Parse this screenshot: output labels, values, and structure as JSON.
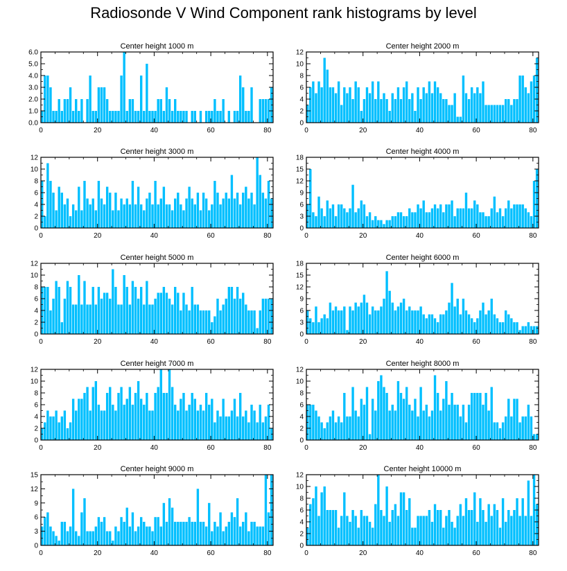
{
  "title": "Radiosonde V Wind Component rank histograms by level",
  "colors": {
    "bar": "#00bfff",
    "axis": "#000000"
  },
  "chart_data": [
    {
      "type": "bar",
      "title": "Center height 1000 m",
      "xlim": [
        0,
        82
      ],
      "ylim": [
        0,
        6
      ],
      "xticks": [
        0,
        20,
        40,
        60,
        80
      ],
      "yticks": [
        0,
        1,
        2,
        3,
        4,
        5,
        6
      ],
      "yticklabels": [
        "0.0",
        "1.0",
        "2.0",
        "3.0",
        "4.0",
        "5.0",
        "6.0"
      ],
      "values": [
        1,
        4,
        4,
        3,
        1,
        1,
        2,
        1,
        2,
        2,
        3,
        1,
        2,
        1,
        2,
        0,
        2,
        4,
        1,
        1,
        3,
        3,
        3,
        2,
        1,
        1,
        1,
        1,
        4,
        6,
        1,
        2,
        2,
        1,
        1,
        4,
        1,
        5,
        1,
        1,
        1,
        2,
        2,
        1,
        3,
        2,
        1,
        2,
        1,
        1,
        1,
        1,
        0,
        1,
        1,
        0,
        1,
        0,
        1,
        1,
        1,
        2,
        1,
        1,
        2,
        0,
        1,
        0,
        1,
        1,
        4,
        3,
        1,
        1,
        3,
        0,
        0,
        2,
        2,
        2,
        2,
        3
      ]
    },
    {
      "type": "bar",
      "title": "Center height 2000 m",
      "xlim": [
        0,
        82
      ],
      "ylim": [
        0,
        12
      ],
      "xticks": [
        0,
        20,
        40,
        60,
        80
      ],
      "yticks": [
        0,
        2,
        4,
        6,
        8,
        10,
        12
      ],
      "yticklabels": [
        "0",
        "2",
        "4",
        "6",
        "8",
        "10",
        "12"
      ],
      "values": [
        3,
        6,
        7,
        5,
        7,
        6,
        11,
        9,
        6,
        6,
        5,
        7,
        3,
        6,
        5,
        6,
        4,
        7,
        6,
        2,
        4,
        6,
        5,
        7,
        4,
        7,
        4,
        5,
        4,
        2,
        5,
        4,
        6,
        4,
        6,
        7,
        4,
        5,
        2,
        6,
        4,
        6,
        5,
        7,
        5,
        7,
        6,
        5,
        4,
        4,
        3,
        3,
        5,
        1,
        1,
        8,
        5,
        4,
        6,
        5,
        6,
        5,
        7,
        3,
        3,
        3,
        3,
        3,
        3,
        3,
        4,
        4,
        3,
        4,
        4,
        8,
        8,
        6,
        5,
        7,
        8,
        11
      ]
    },
    {
      "type": "bar",
      "title": "Center height 3000 m",
      "xlim": [
        0,
        82
      ],
      "ylim": [
        0,
        12
      ],
      "xticks": [
        0,
        20,
        40,
        60,
        80
      ],
      "yticks": [
        0,
        2,
        4,
        6,
        8,
        10,
        12
      ],
      "yticklabels": [
        "0",
        "2",
        "4",
        "6",
        "8",
        "10",
        "12"
      ],
      "values": [
        8,
        2,
        11,
        8,
        6,
        3,
        7,
        6,
        4,
        5,
        2,
        4,
        3,
        7,
        3,
        8,
        5,
        4,
        5,
        3,
        8,
        5,
        4,
        7,
        6,
        3,
        6,
        3,
        5,
        4,
        5,
        4,
        8,
        4,
        7,
        4,
        3,
        5,
        6,
        4,
        8,
        4,
        5,
        7,
        4,
        4,
        3,
        5,
        6,
        4,
        3,
        5,
        7,
        5,
        4,
        6,
        3,
        6,
        5,
        3,
        4,
        8,
        6,
        4,
        5,
        6,
        5,
        9,
        5,
        6,
        4,
        6,
        7,
        5,
        6,
        4,
        12,
        9,
        6,
        5,
        8,
        5
      ]
    },
    {
      "type": "bar",
      "title": "Center height 4000 m",
      "xlim": [
        0,
        82
      ],
      "ylim": [
        0,
        18
      ],
      "xticks": [
        0,
        20,
        40,
        60,
        80
      ],
      "yticks": [
        0,
        3,
        6,
        9,
        12,
        15,
        18
      ],
      "yticklabels": [
        "0",
        "3",
        "6",
        "9",
        "12",
        "15",
        "18"
      ],
      "values": [
        6,
        15,
        4,
        3,
        8,
        5,
        3,
        7,
        5,
        6,
        3,
        6,
        6,
        5,
        4,
        5,
        11,
        4,
        5,
        7,
        6,
        3,
        4,
        2,
        3,
        2,
        2,
        1,
        2,
        2,
        3,
        3,
        4,
        4,
        3,
        3,
        5,
        4,
        4,
        6,
        5,
        7,
        4,
        4,
        5,
        6,
        5,
        6,
        4,
        6,
        6,
        7,
        3,
        5,
        5,
        5,
        9,
        5,
        5,
        7,
        6,
        4,
        4,
        3,
        3,
        5,
        8,
        4,
        5,
        3,
        5,
        7,
        5,
        6,
        6,
        6,
        6,
        5,
        4,
        3,
        12,
        15
      ]
    },
    {
      "type": "bar",
      "title": "Center height 5000 m",
      "xlim": [
        0,
        82
      ],
      "ylim": [
        0,
        12
      ],
      "xticks": [
        0,
        20,
        40,
        60,
        80
      ],
      "yticks": [
        0,
        2,
        4,
        6,
        8,
        10,
        12
      ],
      "yticklabels": [
        "0",
        "2",
        "4",
        "6",
        "8",
        "10",
        "12"
      ],
      "values": [
        8,
        8,
        8,
        4,
        6,
        9,
        8,
        2,
        6,
        9,
        8,
        5,
        5,
        10,
        5,
        9,
        5,
        5,
        8,
        5,
        8,
        6,
        7,
        7,
        6,
        11,
        8,
        5,
        5,
        10,
        8,
        5,
        9,
        8,
        6,
        8,
        5,
        9,
        5,
        5,
        6,
        7,
        7,
        8,
        7,
        6,
        5,
        8,
        7,
        4,
        7,
        5,
        4,
        8,
        5,
        5,
        4,
        4,
        4,
        4,
        2,
        3,
        6,
        4,
        5,
        6,
        8,
        8,
        6,
        8,
        6,
        7,
        5,
        4,
        4,
        4,
        1,
        4,
        6,
        6,
        6,
        6
      ]
    },
    {
      "type": "bar",
      "title": "Center height 6000 m",
      "xlim": [
        0,
        82
      ],
      "ylim": [
        0,
        18
      ],
      "xticks": [
        0,
        20,
        40,
        60,
        80
      ],
      "yticks": [
        0,
        3,
        6,
        9,
        12,
        15,
        18
      ],
      "yticklabels": [
        "0",
        "3",
        "6",
        "9",
        "12",
        "15",
        "18"
      ],
      "values": [
        6,
        4,
        3,
        7,
        3,
        4,
        5,
        4,
        8,
        6,
        7,
        6,
        6,
        7,
        1,
        7,
        6,
        8,
        7,
        8,
        10,
        8,
        5,
        7,
        6,
        6,
        7,
        9,
        16,
        11,
        8,
        6,
        7,
        8,
        9,
        6,
        7,
        6,
        6,
        6,
        7,
        5,
        4,
        5,
        5,
        4,
        3,
        5,
        5,
        6,
        8,
        13,
        7,
        9,
        5,
        9,
        6,
        5,
        4,
        3,
        4,
        6,
        8,
        5,
        6,
        9,
        5,
        4,
        3,
        3,
        6,
        5,
        4,
        3,
        3,
        1,
        2,
        2,
        3,
        2,
        2,
        2
      ]
    },
    {
      "type": "bar",
      "title": "Center height 7000 m",
      "xlim": [
        0,
        82
      ],
      "ylim": [
        0,
        12
      ],
      "xticks": [
        0,
        20,
        40,
        60,
        80
      ],
      "yticks": [
        0,
        2,
        4,
        6,
        8,
        10,
        12
      ],
      "yticklabels": [
        "0",
        "2",
        "4",
        "6",
        "8",
        "10",
        "12"
      ],
      "values": [
        2,
        3,
        5,
        4,
        4,
        5,
        3,
        4,
        5,
        2,
        3,
        7,
        5,
        7,
        7,
        8,
        9,
        5,
        9,
        10,
        6,
        5,
        5,
        8,
        9,
        6,
        5,
        8,
        9,
        6,
        7,
        9,
        6,
        8,
        10,
        7,
        6,
        8,
        5,
        5,
        8,
        9,
        12,
        8,
        8,
        12,
        9,
        6,
        5,
        7,
        8,
        5,
        6,
        8,
        7,
        5,
        6,
        5,
        8,
        6,
        7,
        3,
        5,
        4,
        7,
        4,
        4,
        5,
        7,
        4,
        8,
        4,
        5,
        3,
        6,
        5,
        3,
        6,
        3,
        4,
        6,
        2
      ]
    },
    {
      "type": "bar",
      "title": "Center height 8000 m",
      "xlim": [
        0,
        82
      ],
      "ylim": [
        0,
        12
      ],
      "xticks": [
        0,
        20,
        40,
        60,
        80
      ],
      "yticks": [
        0,
        2,
        4,
        6,
        8,
        10,
        12
      ],
      "yticklabels": [
        "0",
        "2",
        "4",
        "6",
        "8",
        "10",
        "12"
      ],
      "values": [
        6,
        6,
        6,
        5,
        4,
        3,
        2,
        3,
        4,
        5,
        3,
        4,
        3,
        8,
        4,
        4,
        9,
        5,
        4,
        7,
        6,
        9,
        1,
        7,
        5,
        10,
        11,
        9,
        8,
        5,
        6,
        5,
        10,
        8,
        7,
        9,
        6,
        5,
        7,
        4,
        9,
        5,
        6,
        4,
        5,
        11,
        8,
        5,
        7,
        10,
        6,
        8,
        6,
        6,
        4,
        6,
        3,
        6,
        8,
        8,
        8,
        8,
        6,
        8,
        5,
        9,
        3,
        3,
        2,
        3,
        4,
        7,
        4,
        7,
        7,
        3,
        4,
        4,
        6,
        4,
        1,
        1
      ]
    },
    {
      "type": "bar",
      "title": "Center height 9000 m",
      "xlim": [
        0,
        82
      ],
      "ylim": [
        0,
        15
      ],
      "xticks": [
        0,
        20,
        40,
        60,
        80
      ],
      "yticks": [
        0,
        3,
        6,
        9,
        12,
        15
      ],
      "yticklabels": [
        "0",
        "3",
        "6",
        "9",
        "12",
        "15"
      ],
      "values": [
        4,
        6,
        7,
        4,
        3,
        2,
        1,
        5,
        5,
        3,
        4,
        12,
        3,
        2,
        7,
        10,
        3,
        3,
        3,
        4,
        6,
        5,
        6,
        3,
        3,
        1,
        4,
        3,
        6,
        5,
        8,
        4,
        7,
        3,
        4,
        6,
        5,
        4,
        4,
        3,
        6,
        6,
        4,
        9,
        5,
        10,
        8,
        5,
        5,
        5,
        5,
        5,
        6,
        5,
        5,
        12,
        5,
        5,
        4,
        9,
        3,
        5,
        4,
        7,
        3,
        4,
        5,
        7,
        6,
        10,
        4,
        5,
        7,
        3,
        5,
        5,
        4,
        4,
        4,
        15,
        7,
        15
      ]
    },
    {
      "type": "bar",
      "title": "Center height 10000 m",
      "xlim": [
        0,
        82
      ],
      "ylim": [
        0,
        12
      ],
      "xticks": [
        0,
        20,
        40,
        60,
        80
      ],
      "yticks": [
        0,
        2,
        4,
        6,
        8,
        10,
        12
      ],
      "yticklabels": [
        "0",
        "2",
        "4",
        "6",
        "8",
        "10",
        "12"
      ],
      "values": [
        3,
        7,
        8,
        10,
        5,
        9,
        10,
        6,
        6,
        6,
        6,
        3,
        5,
        9,
        5,
        4,
        6,
        5,
        3,
        6,
        5,
        5,
        4,
        3,
        7,
        12,
        6,
        5,
        10,
        4,
        6,
        7,
        5,
        9,
        9,
        6,
        8,
        3,
        3,
        5,
        5,
        5,
        5,
        6,
        4,
        7,
        6,
        6,
        3,
        5,
        6,
        4,
        3,
        5,
        7,
        5,
        8,
        6,
        6,
        9,
        4,
        8,
        6,
        4,
        7,
        5,
        7,
        6,
        3,
        8,
        4,
        6,
        5,
        6,
        8,
        5,
        8,
        5,
        11,
        5,
        12,
        7
      ]
    }
  ]
}
